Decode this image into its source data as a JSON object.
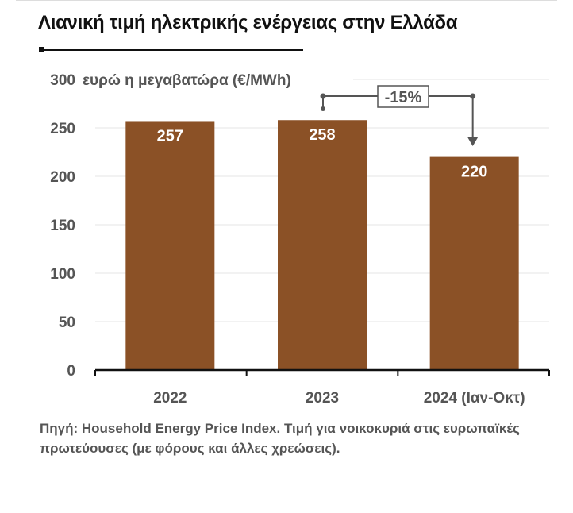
{
  "chart_data": {
    "type": "bar",
    "title": "Λιανική τιμή ηλεκτρικής ενέργειας στην Ελλάδα",
    "ylabel": "ευρώ η μεγαβατώρα (€/MWh)",
    "xlabel": "",
    "categories": [
      "2022",
      "2023",
      "2024 (Ιαν-Οκτ)"
    ],
    "values": [
      257,
      258,
      220
    ],
    "data_labels": [
      "257",
      "258",
      "220"
    ],
    "ylim": [
      0,
      300
    ],
    "yticks": [
      0,
      50,
      100,
      150,
      200,
      250,
      300
    ],
    "ytick_labels": [
      "0",
      "50",
      "100",
      "150",
      "200",
      "250",
      "300"
    ],
    "grid": true,
    "bar_color": "#8B5126",
    "annotation": {
      "label": "-15%",
      "from": "2023",
      "to": "2024 (Ιαν-Οκτ)"
    }
  },
  "note": "Πηγή: Household Energy Price Index. Τιμή για νοικοκυριά στις ευρωπαϊκές πρωτεύουσες (με φόρους και άλλες χρεώσεις)."
}
